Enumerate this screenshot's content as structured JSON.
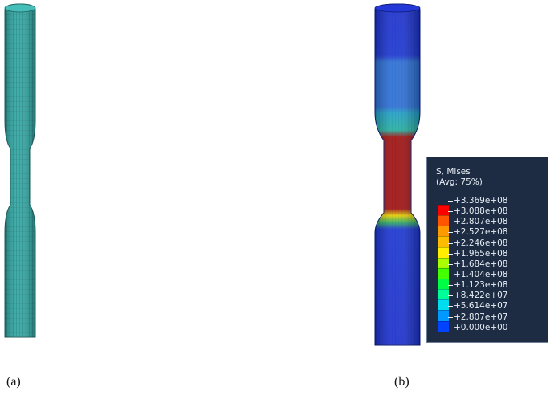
{
  "captions": {
    "a": "(a)",
    "b": "(b)"
  },
  "legend": {
    "title_line1": "S, Mises",
    "title_line2": "(Avg: 75%)",
    "labels": [
      "+3.369e+08",
      "+3.088e+08",
      "+2.807e+08",
      "+2.527e+08",
      "+2.246e+08",
      "+1.965e+08",
      "+1.684e+08",
      "+1.404e+08",
      "+1.123e+08",
      "+8.422e+07",
      "+5.614e+07",
      "+2.807e+07",
      "+0.000e+00"
    ],
    "colors": [
      "#ff0000",
      "#ff5500",
      "#ff9900",
      "#ffbb00",
      "#ffee00",
      "#aaff00",
      "#44ff00",
      "#00ff44",
      "#00ff99",
      "#00ddee",
      "#0099ff",
      "#0044ff",
      "#0000ff"
    ]
  },
  "colors": {
    "mesh_specimen": "#2fa7a3",
    "stress_low": "#1a3fd8",
    "stress_mid": "#2f7fd6",
    "stress_high": "#b01010"
  }
}
